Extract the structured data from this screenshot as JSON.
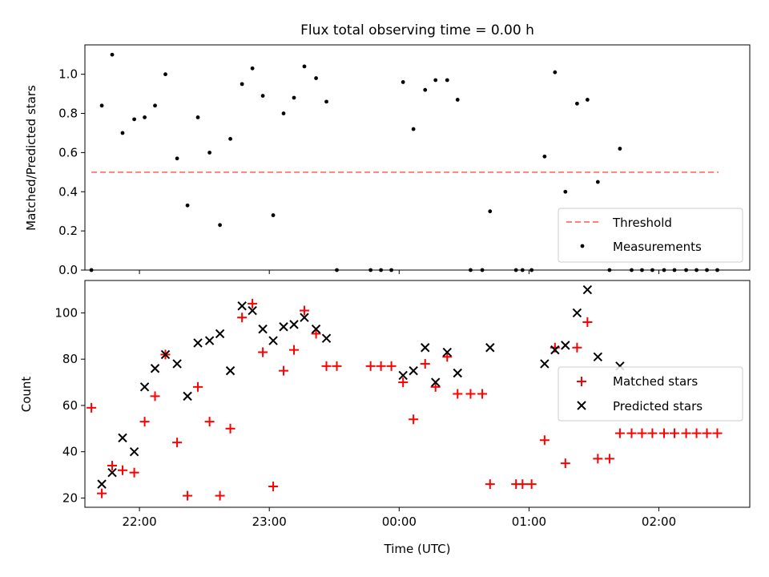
{
  "figure": {
    "title": "Flux total observing time = 0.00 h"
  },
  "chart_data": [
    {
      "type": "scatter",
      "panel": "top",
      "title": "Flux total observing time = 0.00 h",
      "xlabel": "",
      "ylabel": "Matched/Predicted stars",
      "xlim_hours": [
        21.58,
        26.7
      ],
      "ylim": [
        0,
        1.15
      ],
      "yticks": [
        0.0,
        0.2,
        0.4,
        0.6,
        0.8,
        1.0
      ],
      "ytick_labels": [
        "0.0",
        "0.2",
        "0.4",
        "0.6",
        "0.8",
        "1.0"
      ],
      "xticks_hours": [
        22,
        23,
        24,
        25,
        26
      ],
      "grid": false,
      "legend_position": "lower-right",
      "threshold": {
        "name": "Threshold",
        "value": 0.5,
        "x_start": 21.63,
        "x_end": 26.46,
        "color": "#ff7f7f",
        "style": "dashed"
      },
      "series": [
        {
          "name": "Measurements",
          "marker": "dot",
          "color": "#000000",
          "x": [
            21.63,
            21.71,
            21.79,
            21.87,
            21.96,
            22.04,
            22.12,
            22.2,
            22.29,
            22.37,
            22.45,
            22.54,
            22.62,
            22.7,
            22.79,
            22.87,
            22.95,
            23.03,
            23.11,
            23.19,
            23.27,
            23.36,
            23.44,
            23.52,
            23.78,
            23.86,
            23.94,
            24.03,
            24.11,
            24.2,
            24.28,
            24.37,
            24.45,
            24.55,
            24.64,
            24.7,
            24.9,
            24.95,
            25.02,
            25.12,
            25.2,
            25.28,
            25.37,
            25.45,
            25.53,
            25.62,
            25.7,
            25.79,
            25.87,
            25.95,
            26.04,
            26.12,
            26.21,
            26.29,
            26.37,
            26.45
          ],
          "y": [
            0.0,
            0.84,
            1.1,
            0.7,
            0.77,
            0.78,
            0.84,
            1.0,
            0.57,
            0.33,
            0.78,
            0.6,
            0.23,
            0.67,
            0.95,
            1.03,
            0.89,
            0.28,
            0.8,
            0.88,
            1.04,
            0.98,
            0.86,
            0.0,
            0.0,
            0.0,
            0.0,
            0.96,
            0.72,
            0.92,
            0.97,
            0.97,
            0.87,
            0.0,
            0.0,
            0.3,
            0.0,
            0.0,
            0.0,
            0.58,
            1.01,
            0.4,
            0.85,
            0.87,
            0.45,
            0.0,
            0.62,
            0.0,
            0.0,
            0.0,
            0.0,
            0.0,
            0.0,
            0.0,
            0.0,
            0.0
          ]
        }
      ]
    },
    {
      "type": "scatter",
      "panel": "bottom",
      "title": "",
      "xlabel": "Time (UTC)",
      "ylabel": "Count",
      "xlim_hours": [
        21.58,
        26.7
      ],
      "ylim": [
        16,
        114
      ],
      "yticks": [
        20,
        40,
        60,
        80,
        100
      ],
      "ytick_labels": [
        "20",
        "40",
        "60",
        "80",
        "100"
      ],
      "xticks_hours": [
        22,
        23,
        24,
        25,
        26
      ],
      "xtick_labels": [
        "22:00",
        "23:00",
        "00:00",
        "01:00",
        "02:00"
      ],
      "grid": false,
      "legend_position": "center-right",
      "series": [
        {
          "name": "Matched stars",
          "marker": "plus",
          "color": "#ff0000",
          "x": [
            21.63,
            21.71,
            21.79,
            21.87,
            21.96,
            22.04,
            22.12,
            22.2,
            22.29,
            22.37,
            22.45,
            22.54,
            22.62,
            22.7,
            22.79,
            22.87,
            22.95,
            23.03,
            23.11,
            23.19,
            23.27,
            23.36,
            23.44,
            23.52,
            23.78,
            23.86,
            23.94,
            24.03,
            24.11,
            24.2,
            24.28,
            24.37,
            24.45,
            24.55,
            24.64,
            24.7,
            24.9,
            24.95,
            25.02,
            25.12,
            25.2,
            25.28,
            25.37,
            25.45,
            25.53,
            25.62,
            25.7,
            25.79,
            25.87,
            25.95,
            26.04,
            26.12,
            26.21,
            26.29,
            26.37,
            26.45
          ],
          "y": [
            59,
            22,
            34,
            32,
            31,
            53,
            64,
            82,
            44,
            21,
            68,
            53,
            21,
            50,
            98,
            104,
            83,
            25,
            75,
            84,
            101,
            91,
            77,
            77,
            77,
            77,
            77,
            70,
            54,
            78,
            68,
            81,
            65,
            65,
            65,
            26,
            26,
            26,
            26,
            45,
            85,
            35,
            85,
            96,
            37,
            37,
            48,
            48,
            48,
            48,
            48,
            48,
            48,
            48,
            48,
            48
          ]
        },
        {
          "name": "Predicted stars",
          "marker": "x",
          "color": "#000000",
          "x": [
            21.71,
            21.79,
            21.87,
            21.96,
            22.04,
            22.12,
            22.2,
            22.29,
            22.37,
            22.45,
            22.54,
            22.62,
            22.7,
            22.79,
            22.87,
            22.95,
            23.03,
            23.11,
            23.19,
            23.27,
            23.36,
            23.44,
            24.03,
            24.11,
            24.2,
            24.28,
            24.37,
            24.45,
            24.7,
            25.12,
            25.2,
            25.28,
            25.37,
            25.45,
            25.53,
            25.7
          ],
          "y": [
            26,
            31,
            46,
            40,
            68,
            76,
            82,
            78,
            64,
            87,
            88,
            91,
            75,
            103,
            101,
            93,
            88,
            94,
            95,
            98,
            93,
            89,
            73,
            75,
            85,
            70,
            83,
            74,
            85,
            78,
            84,
            86,
            100,
            110,
            81,
            77
          ]
        }
      ]
    }
  ]
}
